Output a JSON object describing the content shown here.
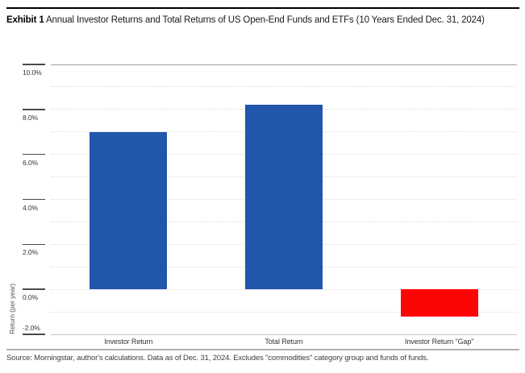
{
  "page": {
    "title_bold": "Exhibit 1",
    "title_rest": " Annual Investor Returns and Total Returns of US Open-End Funds and ETFs (10 Years Ended Dec. 31, 2024)",
    "source_note": "Source: Morningstar, author's calculations. Data as of Dec. 31, 2024. Excludes \"commodities\" category group and funds of funds."
  },
  "chart_data": {
    "type": "bar",
    "title": "Exhibit 1 Annual Investor Returns and Total Returns of US Open-End Funds and ETFs (10 Years Ended Dec. 31, 2024)",
    "categories": [
      "Investor Return",
      "Total Return",
      "Investor Return \"Gap\""
    ],
    "values": [
      7.0,
      8.2,
      -1.2
    ],
    "bar_colors": [
      "#2255ac",
      "#2255ac",
      "#fe0505"
    ],
    "xlabel": "",
    "ylabel": "Return (per year)",
    "ylim": [
      -2,
      10
    ],
    "yticks": [
      {
        "value": 10,
        "label": "10.0%"
      },
      {
        "value": 8,
        "label": "8.0%"
      },
      {
        "value": 6,
        "label": "6.0%"
      },
      {
        "value": 4,
        "label": "4.0%"
      },
      {
        "value": 2,
        "label": "2.0%"
      },
      {
        "value": 0,
        "label": "0.0%"
      },
      {
        "value": -2,
        "label": "-2.0%"
      }
    ],
    "minor_gridline_values": [
      9,
      8,
      7,
      6,
      5,
      4,
      3,
      2,
      1,
      0,
      -1
    ],
    "grid": "dotted horizontal lines at every 1.0%",
    "legend": "none",
    "baseline": 0,
    "source": "Source: Morningstar, author's calculations. Data as of Dec. 31, 2024. Excludes \"commodities\" category group and funds of funds."
  }
}
